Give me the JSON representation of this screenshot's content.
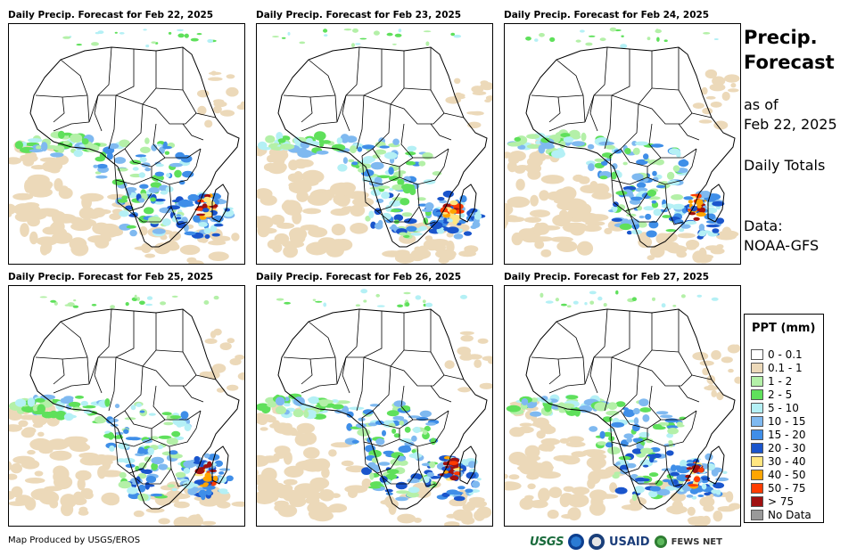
{
  "panels": [
    {
      "title": "Daily Precip. Forecast for Feb 22, 2025"
    },
    {
      "title": "Daily Precip. Forecast for Feb 23, 2025"
    },
    {
      "title": "Daily Precip. Forecast for Feb 24, 2025"
    },
    {
      "title": "Daily Precip. Forecast for Feb 25, 2025"
    },
    {
      "title": "Daily Precip. Forecast for Feb 26, 2025"
    },
    {
      "title": "Daily Precip. Forecast for Feb 27, 2025"
    }
  ],
  "side": {
    "title_line1": "Precip.",
    "title_line2": "Forecast",
    "asof_line1": "as of",
    "asof_line2": "Feb 22, 2025",
    "totals": "Daily Totals",
    "data_line1": "Data:",
    "data_line2": "NOAA-GFS"
  },
  "legend": {
    "title": "PPT (mm)",
    "items": [
      {
        "label": "0 - 0.1",
        "color": "#ffffff"
      },
      {
        "label": "0.1 - 1",
        "color": "#ecd9b9"
      },
      {
        "label": "1 - 2",
        "color": "#b4f0a8"
      },
      {
        "label": "2 - 5",
        "color": "#5fe05b"
      },
      {
        "label": "5 - 10",
        "color": "#b4f0f5"
      },
      {
        "label": "10 - 15",
        "color": "#7fb9f0"
      },
      {
        "label": "15 - 20",
        "color": "#3f8ee8"
      },
      {
        "label": "20 - 30",
        "color": "#1a55cc"
      },
      {
        "label": "30 - 40",
        "color": "#ffe680"
      },
      {
        "label": "40 - 50",
        "color": "#ffa500"
      },
      {
        "label": "50 - 75",
        "color": "#ff3c00"
      },
      {
        "label": "> 75",
        "color": "#a01010"
      },
      {
        "label": "No Data",
        "color": "#999999"
      }
    ]
  },
  "footer": {
    "credit": "Map Produced by USGS/EROS",
    "logo_usgs": "USGS",
    "logo_usaid": "USAID",
    "logo_fews": "FEWS NET"
  }
}
